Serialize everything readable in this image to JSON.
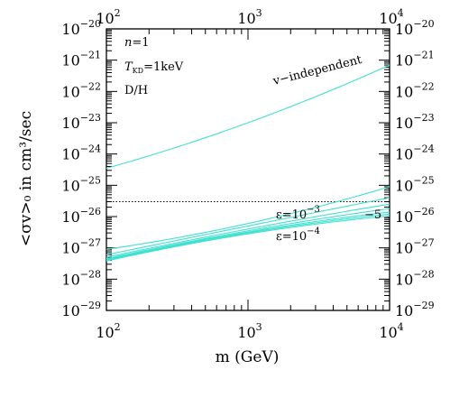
{
  "chart_data": {
    "type": "line",
    "title": "",
    "xlabel": "m (GeV)",
    "ylabel": "<σv>₀ in cm³/sec",
    "xscale": "log",
    "yscale": "log",
    "xlim": [
      100,
      10000
    ],
    "ylim": [
      1e-29,
      1e-20
    ],
    "x_ticks": [
      {
        "value": 100,
        "base": "10",
        "exp": "2"
      },
      {
        "value": 1000,
        "base": "10",
        "exp": "3"
      },
      {
        "value": 10000,
        "base": "10",
        "exp": "4"
      }
    ],
    "y_ticks": [
      {
        "value": 1e-20,
        "base": "10",
        "exp": "−20"
      },
      {
        "value": 1e-21,
        "base": "10",
        "exp": "−21"
      },
      {
        "value": 1e-22,
        "base": "10",
        "exp": "−22"
      },
      {
        "value": 1e-23,
        "base": "10",
        "exp": "−23"
      },
      {
        "value": 1e-24,
        "base": "10",
        "exp": "−24"
      },
      {
        "value": 1e-25,
        "base": "10",
        "exp": "−25"
      },
      {
        "value": 1e-26,
        "base": "10",
        "exp": "−26"
      },
      {
        "value": 1e-27,
        "base": "10",
        "exp": "−27"
      },
      {
        "value": 1e-28,
        "base": "10",
        "exp": "−28"
      },
      {
        "value": 1e-29,
        "base": "10",
        "exp": "−29"
      }
    ],
    "params": {
      "n_name": "n",
      "n_value": "=1",
      "t_name": "T",
      "t_sub": "KD",
      "t_value": "=1keV",
      "ratio": "D/H"
    },
    "reference_line": {
      "y": 3e-26,
      "style": "dotted",
      "color": "#000000"
    },
    "series_color": "#40e0d0",
    "series": [
      {
        "label": "v−independent",
        "x": [
          100,
          1000,
          10000
        ],
        "y": [
          3.5e-25,
          1e-23,
          7e-22
        ]
      },
      {
        "x": [
          100,
          1000,
          10000
        ],
        "y": [
          9e-28,
          6e-27,
          9e-26
        ]
      },
      {
        "x": [
          100,
          1000,
          10000
        ],
        "y": [
          6e-28,
          5e-27,
          4e-26
        ]
      },
      {
        "x": [
          100,
          1000,
          10000
        ],
        "y": [
          5e-28,
          4e-27,
          2.5e-26
        ]
      },
      {
        "x": [
          100,
          1000,
          10000
        ],
        "y": [
          4.5e-28,
          3.5e-27,
          1.8e-26
        ]
      },
      {
        "x": [
          100,
          1000,
          10000
        ],
        "y": [
          4.2e-28,
          3.2e-27,
          1.4e-26
        ]
      },
      {
        "x": [
          100,
          1000,
          10000
        ],
        "y": [
          4e-28,
          3e-27,
          1.2e-26
        ]
      },
      {
        "x": [
          100,
          1000,
          10000
        ],
        "y": [
          3.8e-28,
          2.8e-27,
          1.05e-26
        ]
      }
    ],
    "labels": [
      {
        "text": "v−independent",
        "series": 0
      },
      {
        "text": "ε=10",
        "exp": "−3",
        "series": 1
      },
      {
        "text": "ε=10",
        "exp": "−4",
        "series": 2
      },
      {
        "text": "−5",
        "series": 3
      }
    ],
    "grid": false,
    "legend": "none"
  }
}
